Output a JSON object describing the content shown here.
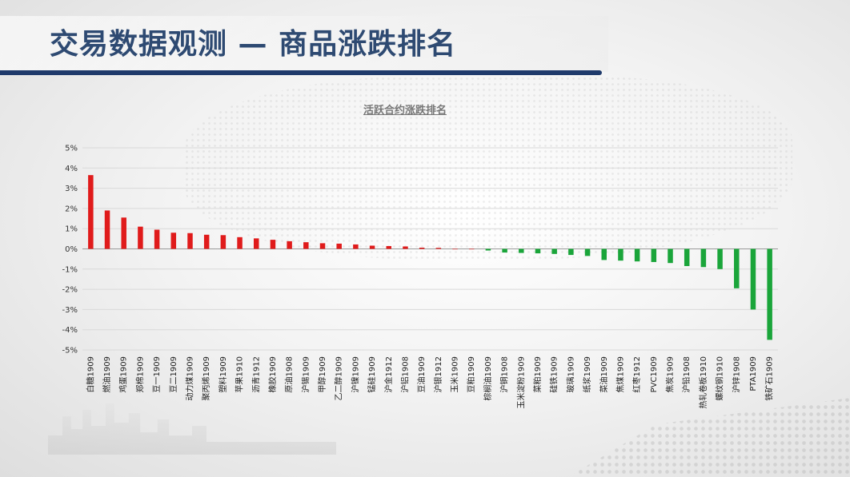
{
  "page": {
    "title": "交易数据观测 — 商品涨跌排名"
  },
  "chart_data": {
    "type": "bar",
    "title": "活跃合约涨跌排名",
    "xlabel": "",
    "ylabel": "",
    "ylim": [
      -5,
      5
    ],
    "yticks": [
      "5%",
      "4%",
      "3%",
      "2%",
      "1%",
      "0%",
      "-1%",
      "-2%",
      "-3%",
      "-4%",
      "-5%"
    ],
    "grid": true,
    "colors": {
      "positive": "#e01b1b",
      "negative": "#1aa53a",
      "grid": "#d9d9d9"
    },
    "categories": [
      "白糖1909",
      "燃油1909",
      "鸡蛋1909",
      "郑棉1909",
      "豆一1909",
      "豆二1909",
      "动力煤1909",
      "聚丙烯1909",
      "塑料1909",
      "苹果1910",
      "沥青1912",
      "橡胶1909",
      "原油1908",
      "沪锡1909",
      "甲醇1909",
      "乙二醇1909",
      "沪镍1909",
      "锰硅1909",
      "沪金1912",
      "沪铝1908",
      "豆油1909",
      "沪银1912",
      "玉米1909",
      "豆粕1909",
      "棕榈油1909",
      "沪铜1908",
      "玉米淀粉1909",
      "菜粕1909",
      "硅铁1909",
      "玻璃1909",
      "纸浆1909",
      "菜油1909",
      "焦煤1909",
      "红枣1912",
      "PVC1909",
      "焦炭1909",
      "沪铅1908",
      "热轧卷板1910",
      "螺纹钢1910",
      "沪锌1908",
      "PTA1909",
      "铁矿石1909"
    ],
    "values": [
      3.65,
      1.9,
      1.55,
      1.1,
      0.95,
      0.8,
      0.78,
      0.7,
      0.68,
      0.58,
      0.52,
      0.45,
      0.38,
      0.33,
      0.28,
      0.26,
      0.22,
      0.16,
      0.14,
      0.12,
      0.06,
      0.05,
      0.0,
      0.0,
      -0.08,
      -0.18,
      -0.2,
      -0.22,
      -0.25,
      -0.3,
      -0.35,
      -0.55,
      -0.58,
      -0.62,
      -0.65,
      -0.7,
      -0.85,
      -0.9,
      -1.0,
      -1.95,
      -3.0,
      -4.5
    ]
  }
}
